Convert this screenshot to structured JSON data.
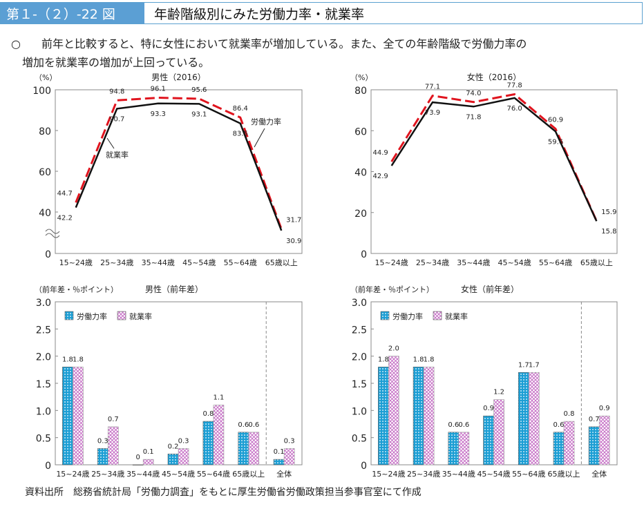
{
  "header": {
    "figure_no": "第１-（２）-22 図",
    "title": "年齢階級別にみた労働力率・就業率"
  },
  "lead": {
    "bullet": "○",
    "text1": "前年と比較すると、特に女性において就業率が増加している。また、全ての年齢階級で労働力率の",
    "text2": "増加を就業率の増加が上回っている。"
  },
  "source": "資料出所　総務省統計局「労働力調査」をもとに厚生労働省労働政策担当参事官室にて作成",
  "colors": {
    "lfpr_line": "#e0141e",
    "emp_line": "#111111",
    "lfpr_bar": "#1c9ed4",
    "emp_bar": "#c46bc4"
  },
  "chart_data": [
    {
      "type": "line",
      "title": "男性（2016）",
      "unit": "（%）",
      "categories": [
        "15~24歳",
        "25~34歳",
        "35~44歳",
        "45~54歳",
        "55~64歳",
        "65歳以上"
      ],
      "series": [
        {
          "name": "労働力率",
          "values": [
            44.7,
            94.8,
            96.1,
            95.6,
            86.4,
            31.7
          ]
        },
        {
          "name": "就業率",
          "values": [
            42.2,
            90.7,
            93.3,
            93.1,
            83.5,
            30.9
          ]
        }
      ],
      "yticks": [
        0,
        40,
        60,
        80,
        100
      ],
      "ylim": [
        0,
        100
      ],
      "axis_break": true
    },
    {
      "type": "line",
      "title": "女性（2016）",
      "unit": "（%）",
      "categories": [
        "15~24歳",
        "25~34歳",
        "35~44歳",
        "45~54歳",
        "55~64歳",
        "65歳以上"
      ],
      "series": [
        {
          "name": "労働力率",
          "values": [
            44.9,
            77.1,
            74.0,
            77.8,
            60.9,
            15.9
          ]
        },
        {
          "name": "就業率",
          "values": [
            42.9,
            73.9,
            71.8,
            76.0,
            59.6,
            15.8
          ]
        }
      ],
      "yticks": [
        0,
        20,
        40,
        60,
        80
      ],
      "ylim": [
        0,
        80
      ],
      "axis_break": false
    },
    {
      "type": "bar",
      "title": "男性（前年差）",
      "unit": "（前年差・％ポイント）",
      "categories": [
        "15~24歳",
        "25~34歳",
        "35~44歳",
        "45~54歳",
        "55~64歳",
        "65歳以上",
        "全体"
      ],
      "series": [
        {
          "name": "労働力率",
          "values": [
            1.8,
            0.3,
            0,
            0.2,
            0.8,
            0.6,
            0.1
          ]
        },
        {
          "name": "就業率",
          "values": [
            1.8,
            0.7,
            0.1,
            0.3,
            1.1,
            0.6,
            0.3
          ]
        }
      ],
      "yticks": [
        "0",
        "0.5",
        "1.0",
        "1.5",
        "2.0",
        "2.5",
        "3.0"
      ],
      "ylim": [
        0,
        3.0
      ],
      "legend": "top-left"
    },
    {
      "type": "bar",
      "title": "女性（前年差）",
      "unit": "（前年差・％ポイント）",
      "categories": [
        "15~24歳",
        "25~34歳",
        "35~44歳",
        "45~54歳",
        "55~64歳",
        "65歳以上",
        "全体"
      ],
      "series": [
        {
          "name": "労働力率",
          "values": [
            1.8,
            1.8,
            0.6,
            0.9,
            1.7,
            0.6,
            0.7
          ]
        },
        {
          "name": "就業率",
          "values": [
            2.0,
            1.8,
            0.6,
            1.2,
            1.7,
            0.8,
            0.9
          ]
        }
      ],
      "yticks": [
        "0",
        "0.5",
        "1.0",
        "1.5",
        "2.0",
        "2.5",
        "3.0"
      ],
      "ylim": [
        0,
        3.0
      ],
      "legend": "top-left"
    }
  ]
}
